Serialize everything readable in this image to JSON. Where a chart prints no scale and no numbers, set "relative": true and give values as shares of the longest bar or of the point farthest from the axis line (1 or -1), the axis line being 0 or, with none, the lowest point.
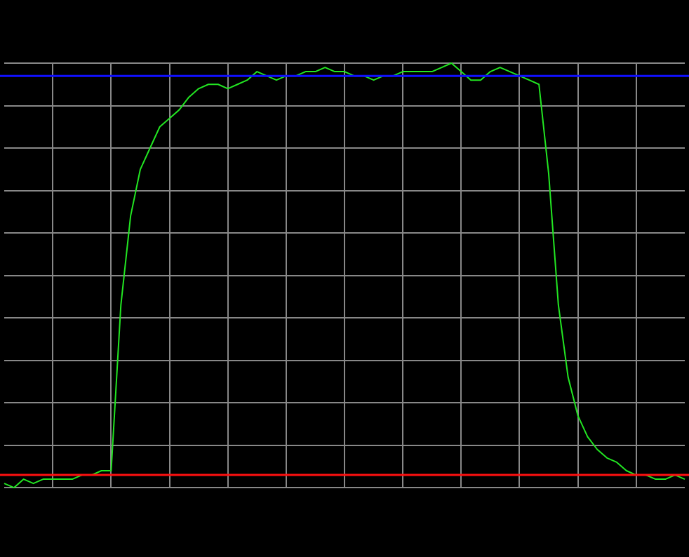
{
  "chart_data": {
    "type": "line",
    "relative": true,
    "categories": [
      null,
      null,
      null,
      null,
      null,
      null,
      null,
      null,
      null,
      null,
      null,
      null,
      null,
      null,
      null,
      null,
      null,
      null,
      null,
      null,
      null,
      null,
      null,
      null,
      null,
      null,
      null,
      null,
      null,
      null,
      null,
      null,
      null,
      null,
      null,
      null,
      null,
      null,
      null,
      null,
      null,
      null,
      null,
      null,
      null,
      null,
      null,
      null,
      null,
      null,
      null,
      null,
      null,
      null,
      null,
      null,
      null,
      null,
      null,
      null,
      null,
      null,
      null,
      null,
      null,
      null,
      null,
      null,
      null,
      null,
      null
    ],
    "series": [
      {
        "color": "#22e622",
        "values": [
          0.01,
          0.0,
          0.02,
          0.01,
          0.02,
          0.02,
          0.02,
          0.02,
          0.03,
          0.03,
          0.04,
          0.04,
          0.43,
          0.64,
          0.75,
          0.8,
          0.85,
          0.87,
          0.89,
          0.92,
          0.94,
          0.95,
          0.95,
          0.94,
          0.95,
          0.96,
          0.98,
          0.97,
          0.96,
          0.97,
          0.97,
          0.98,
          0.98,
          0.99,
          0.98,
          0.98,
          0.97,
          0.97,
          0.96,
          0.97,
          0.97,
          0.98,
          0.98,
          0.98,
          0.98,
          0.99,
          1.0,
          0.98,
          0.96,
          0.96,
          0.98,
          0.99,
          0.98,
          0.97,
          0.96,
          0.95,
          0.74,
          0.43,
          0.26,
          0.17,
          0.12,
          0.09,
          0.07,
          0.06,
          0.04,
          0.03,
          0.03,
          0.02,
          0.02,
          0.03,
          0.02
        ]
      }
    ],
    "ref_lines": [
      {
        "axis": "y",
        "value": 0.97,
        "color": "#1010ff"
      },
      {
        "axis": "y",
        "value": 0.03,
        "color": "#ff1010"
      }
    ],
    "grid": true,
    "legend": false,
    "marker": "none",
    "line_style": "solid"
  }
}
